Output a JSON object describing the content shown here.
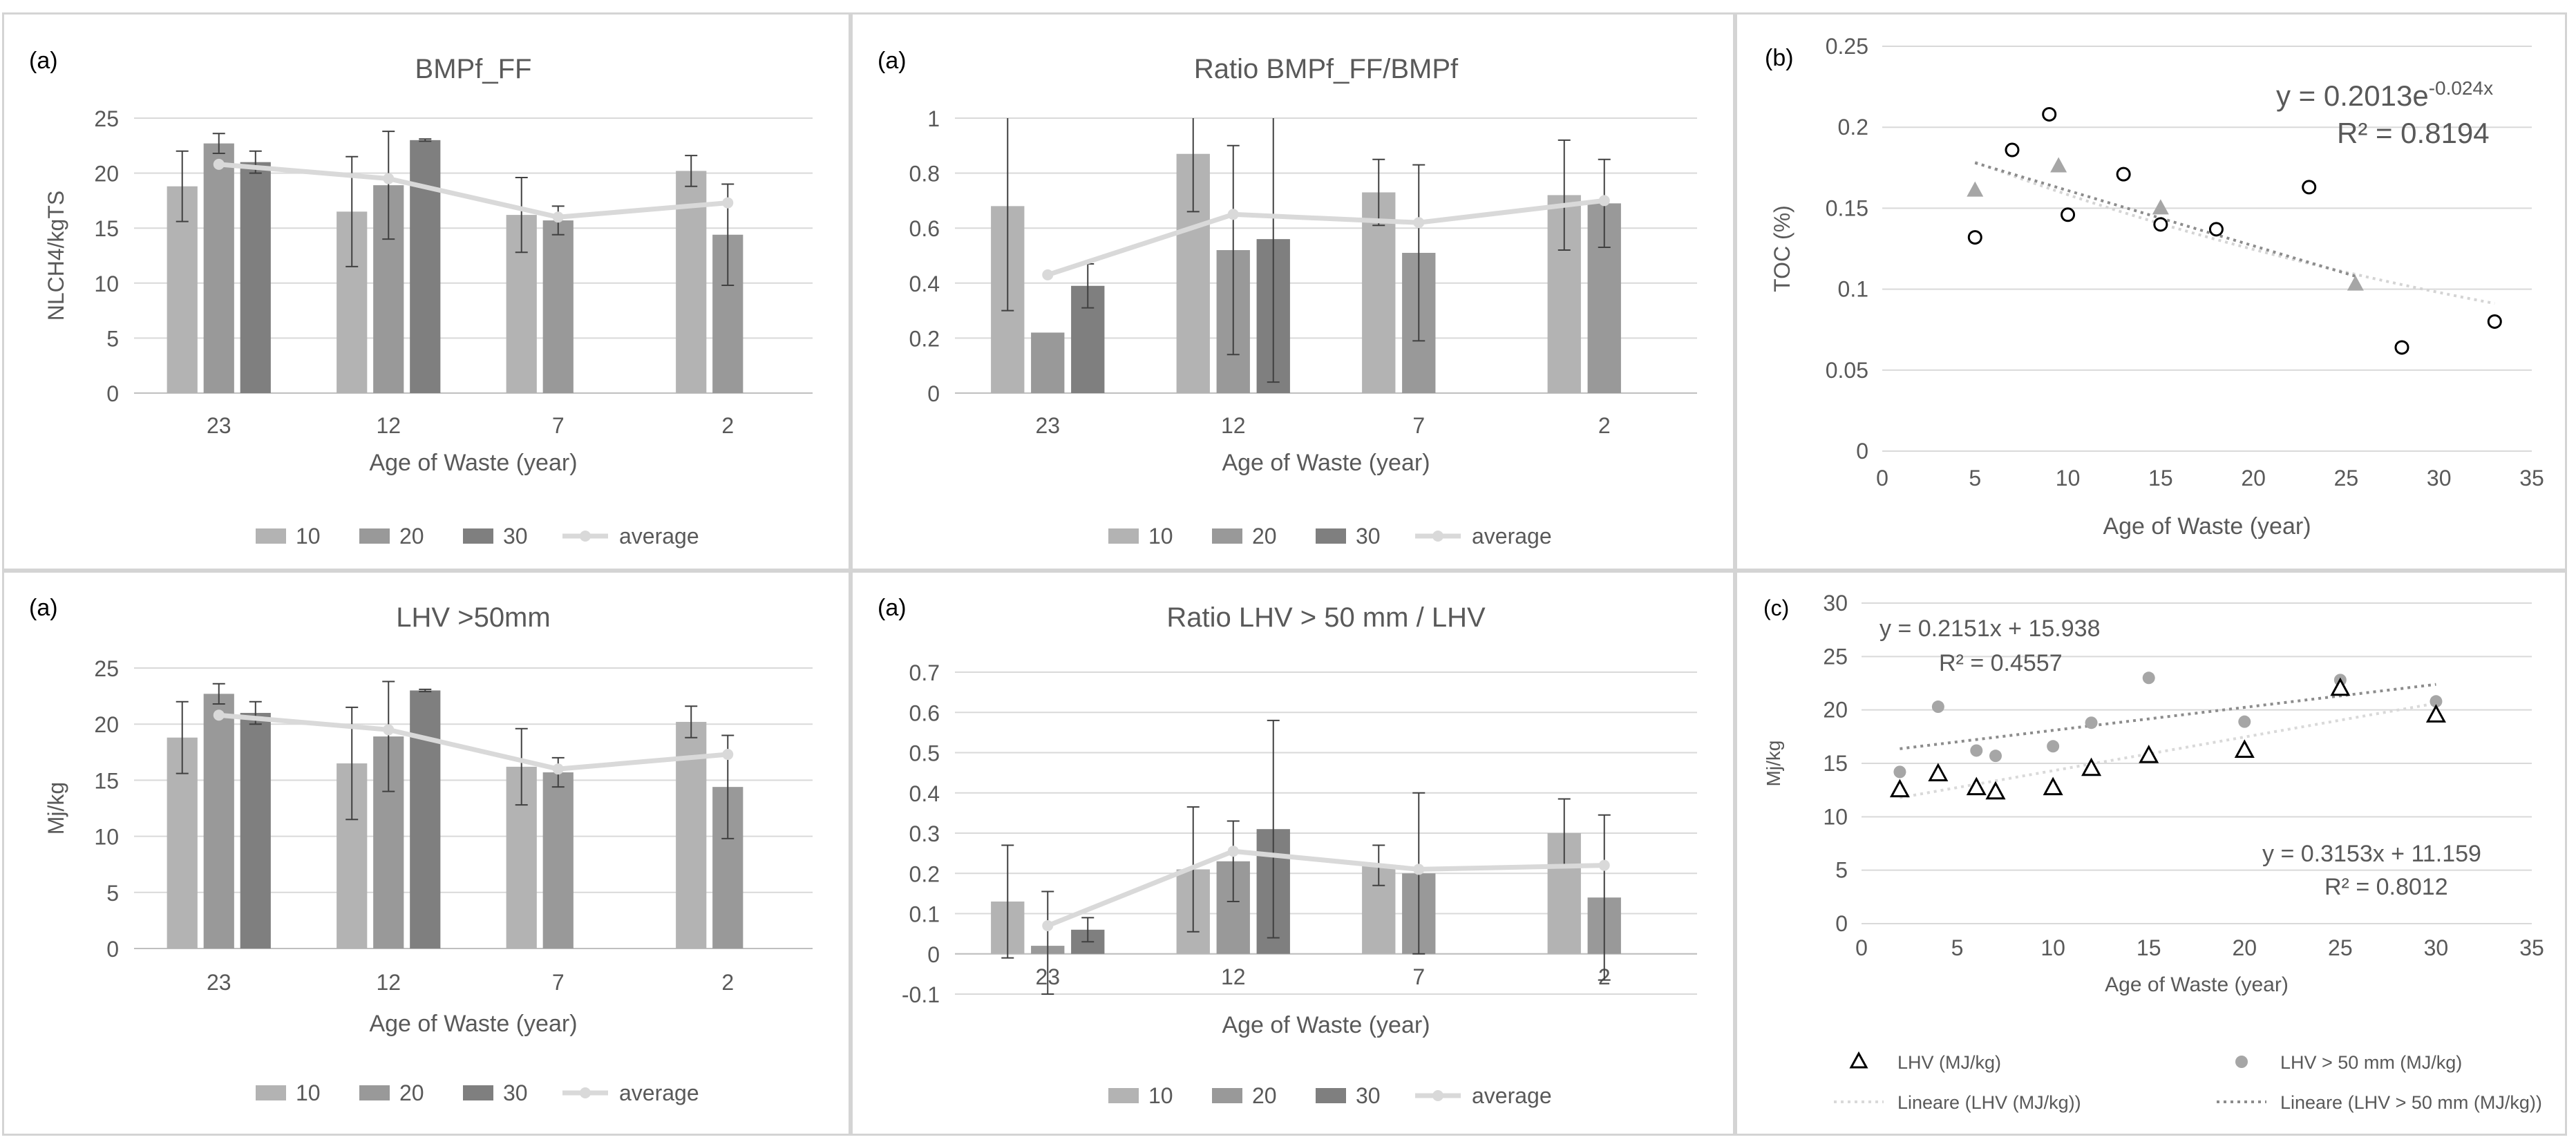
{
  "chart_data": [
    {
      "id": "p1",
      "type": "bar",
      "panel_tag": "(a)",
      "title": "BMPf_FF",
      "xlabel": "Age of Waste (year)",
      "ylabel": "NLCH4/kgTS",
      "ylim": [
        0,
        25
      ],
      "yticks": [
        0,
        5,
        10,
        15,
        20,
        25
      ],
      "ytick_labels": [
        "0",
        "5",
        "10",
        "15",
        "20",
        "25"
      ],
      "categories": [
        "23",
        "12",
        "7",
        "2"
      ],
      "series": [
        {
          "name": "10",
          "color": "#b3b3b3",
          "values": [
            18.8,
            16.5,
            16.2,
            20.2
          ],
          "err": [
            3.2,
            5.0,
            3.4,
            1.4
          ]
        },
        {
          "name": "20",
          "color": "#999999",
          "values": [
            22.7,
            18.9,
            15.7,
            14.4
          ],
          "err": [
            0.9,
            4.9,
            1.3,
            4.6
          ]
        },
        {
          "name": "30",
          "color": "#7f7f7f",
          "values": [
            21.0,
            23.0,
            null,
            null
          ],
          "err": [
            1.0,
            0.1,
            null,
            null
          ]
        }
      ],
      "average": {
        "name": "average",
        "color": "#d9d9d9",
        "values": [
          20.8,
          19.5,
          16.0,
          17.3
        ]
      },
      "legend": "bottom",
      "grid": true
    },
    {
      "id": "p2",
      "type": "bar",
      "panel_tag": "(a)",
      "title": "Ratio BMPf_FF/BMPf",
      "xlabel": "Age of Waste  (year)",
      "ylabel": "",
      "ylim": [
        0,
        1
      ],
      "yticks": [
        0,
        0.2,
        0.4,
        0.6,
        0.8,
        1
      ],
      "ytick_labels": [
        "0",
        "0.2",
        "0.4",
        "0.6",
        "0.8",
        "1"
      ],
      "categories": [
        "23",
        "12",
        "7",
        "2"
      ],
      "series": [
        {
          "name": "10",
          "color": "#b3b3b3",
          "values": [
            0.68,
            0.87,
            0.73,
            0.72
          ],
          "err": [
            0.38,
            0.21,
            0.12,
            0.2
          ]
        },
        {
          "name": "20",
          "color": "#999999",
          "values": [
            0.22,
            0.52,
            0.51,
            0.69
          ],
          "err": [
            null,
            0.38,
            0.32,
            0.16
          ]
        },
        {
          "name": "30",
          "color": "#7f7f7f",
          "values": [
            0.39,
            0.56,
            null,
            null
          ],
          "err": [
            0.08,
            0.52,
            null,
            null
          ]
        }
      ],
      "average": {
        "name": "average",
        "color": "#d9d9d9",
        "values": [
          0.43,
          0.65,
          0.62,
          0.7
        ]
      },
      "legend": "bottom",
      "grid": true
    },
    {
      "id": "p3",
      "type": "bar",
      "panel_tag": "(a)",
      "title": "LHV >50mm",
      "xlabel": "Age of Waste (year)",
      "ylabel": "Mj/kg",
      "ylim": [
        0,
        25
      ],
      "yticks": [
        0,
        5,
        10,
        15,
        20,
        25
      ],
      "ytick_labels": [
        "0",
        "5",
        "10",
        "15",
        "20",
        "25"
      ],
      "categories": [
        "23",
        "12",
        "7",
        "2"
      ],
      "series": [
        {
          "name": "10",
          "color": "#b3b3b3",
          "values": [
            18.8,
            16.5,
            16.2,
            20.2
          ],
          "err": [
            3.2,
            5.0,
            3.4,
            1.4
          ]
        },
        {
          "name": "20",
          "color": "#999999",
          "values": [
            22.7,
            18.9,
            15.7,
            14.4
          ],
          "err": [
            0.9,
            4.9,
            1.3,
            4.6
          ]
        },
        {
          "name": "30",
          "color": "#7f7f7f",
          "values": [
            21.0,
            23.0,
            null,
            null
          ],
          "err": [
            1.0,
            0.1,
            null,
            null
          ]
        }
      ],
      "average": {
        "name": "average",
        "color": "#d9d9d9",
        "values": [
          20.8,
          19.5,
          16.0,
          17.3
        ]
      },
      "legend": "bottom",
      "grid": true
    },
    {
      "id": "p4",
      "type": "bar",
      "panel_tag": "(a)",
      "title": "Ratio LHV > 50 mm / LHV",
      "xlabel": "Age of Waste (year)",
      "ylabel": "",
      "ylim": [
        -0.1,
        0.7
      ],
      "yticks": [
        -0.1,
        0,
        0.1,
        0.2,
        0.3,
        0.4,
        0.5,
        0.6,
        0.7
      ],
      "ytick_labels": [
        "-0.1",
        "0",
        "0.1",
        "0.2",
        "0.3",
        "0.4",
        "0.5",
        "0.6",
        "0.7"
      ],
      "categories": [
        "23",
        "12",
        "7",
        "2"
      ],
      "series": [
        {
          "name": "10",
          "color": "#b3b3b3",
          "values": [
            0.13,
            0.21,
            0.22,
            0.3
          ],
          "err": [
            0.14,
            0.155,
            0.05,
            0.085
          ]
        },
        {
          "name": "20",
          "color": "#999999",
          "values": [
            0.02,
            0.23,
            0.2,
            0.14
          ],
          "err": [
            0.135,
            0.1,
            0.2,
            0.205
          ]
        },
        {
          "name": "30",
          "color": "#7f7f7f",
          "values": [
            0.06,
            0.31,
            null,
            null
          ],
          "err": [
            0.03,
            0.27,
            null,
            null
          ]
        }
      ],
      "average": {
        "name": "average",
        "color": "#d9d9d9",
        "values": [
          0.07,
          0.255,
          0.21,
          0.22
        ]
      },
      "legend": "bottom",
      "grid": true
    },
    {
      "id": "p5",
      "type": "scatter",
      "panel_tag": "(b)",
      "xlabel": "Age of Waste (year)",
      "ylabel": "TOC (%)",
      "xlim": [
        0,
        35
      ],
      "ylim": [
        0,
        0.25
      ],
      "xticks": [
        0,
        5,
        10,
        15,
        20,
        25,
        30,
        35
      ],
      "xtick_labels": [
        "0",
        "5",
        "10",
        "15",
        "20",
        "25",
        "30",
        "35"
      ],
      "yticks": [
        0,
        0.05,
        0.1,
        0.15,
        0.2,
        0.25
      ],
      "ytick_labels": [
        "0",
        "0.05",
        "0.1",
        "0.15",
        "0.2",
        "0.25"
      ],
      "circles": {
        "x": [
          5,
          7,
          9,
          10,
          13,
          15,
          18,
          23,
          28,
          33
        ],
        "y": [
          0.132,
          0.186,
          0.208,
          0.146,
          0.171,
          0.14,
          0.137,
          0.163,
          0.064,
          0.08
        ]
      },
      "triangles": {
        "x": [
          5,
          9.5,
          15,
          25.5
        ],
        "y": [
          0.161,
          0.176,
          0.15,
          0.103
        ]
      },
      "trend_lines": [
        {
          "kind": "exp",
          "a": 0.2013,
          "b": -0.024,
          "x": [
            5,
            33
          ],
          "color": "#d4d4d4"
        },
        {
          "kind": "linear",
          "x": [
            5,
            25.5
          ],
          "y": [
            0.178,
            0.108
          ],
          "color": "#8c8c8c"
        }
      ],
      "equation": "y = 0.2013e",
      "equation_exp": "-0.024x",
      "r2": "R² = 0.8194",
      "grid": true
    },
    {
      "id": "p6",
      "type": "scatter",
      "panel_tag": "(c)",
      "xlabel": "Age  of Waste (year)",
      "ylabel": "Mj/kg",
      "xlim": [
        0,
        35
      ],
      "ylim": [
        0,
        30
      ],
      "xticks": [
        0,
        5,
        10,
        15,
        20,
        25,
        30,
        35
      ],
      "xtick_labels": [
        "0",
        "5",
        "10",
        "15",
        "20",
        "25",
        "30",
        "35"
      ],
      "yticks": [
        0,
        5,
        10,
        15,
        20,
        25,
        30
      ],
      "ytick_labels": [
        "0",
        "5",
        "10",
        "15",
        "20",
        "25",
        "30"
      ],
      "series": [
        {
          "name": "LHV (MJ/kg)",
          "marker": "triangle",
          "x": [
            2,
            4,
            6,
            7,
            10,
            12,
            15,
            20,
            25,
            30
          ],
          "y": [
            12.5,
            14,
            12.7,
            12.3,
            12.7,
            14.5,
            15.7,
            16.2,
            22,
            19.5
          ]
        },
        {
          "name": "LHV > 50 mm (MJ/kg)",
          "marker": "circle",
          "color": "#a6a6a6",
          "x": [
            2,
            4,
            6,
            7,
            10,
            12,
            15,
            20,
            25,
            30
          ],
          "y": [
            14.2,
            20.3,
            16.2,
            15.7,
            16.6,
            18.8,
            23,
            18.9,
            22.8,
            20.8
          ]
        }
      ],
      "trend_lines": [
        {
          "name": "Lineare (LHV (MJ/kg))",
          "slope": 0.3153,
          "intercept": 11.159,
          "x": [
            2,
            30
          ],
          "color": "#d9d9d9"
        },
        {
          "name": "Lineare (LHV > 50 mm (MJ/kg))",
          "slope": 0.2151,
          "intercept": 15.938,
          "x": [
            2,
            30
          ],
          "color": "#8c8c8c"
        }
      ],
      "eq1": "y = 0.2151x + 15.938",
      "r2_1": "R² = 0.4557",
      "eq2": "y = 0.3153x + 11.159",
      "r2_2": "R² = 0.8012",
      "legend": "bottom",
      "grid": true
    }
  ]
}
